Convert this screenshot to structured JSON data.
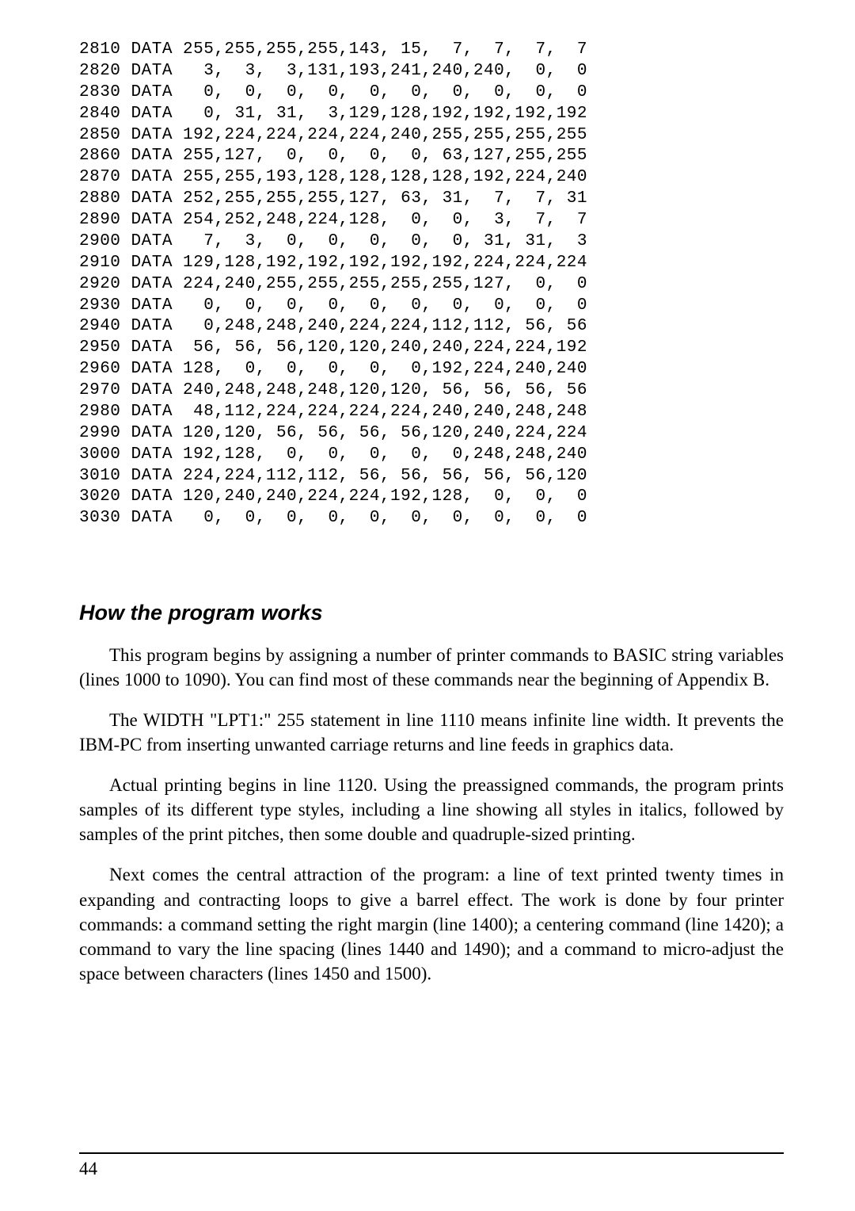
{
  "code": {
    "lines": [
      {
        "num": "2810",
        "kw": "DATA",
        "vals": "255,255,255,255,143, 15,  7,  7,  7,  7"
      },
      {
        "num": "2820",
        "kw": "DATA",
        "vals": "  3,  3,  3,131,193,241,240,240,  0,  0"
      },
      {
        "num": "2830",
        "kw": "DATA",
        "vals": "  0,  0,  0,  0,  0,  0,  0,  0,  0,  0"
      },
      {
        "num": "2840",
        "kw": "DATA",
        "vals": "  0, 31, 31,  3,129,128,192,192,192,192"
      },
      {
        "num": "2850",
        "kw": "DATA",
        "vals": "192,224,224,224,224,240,255,255,255,255"
      },
      {
        "num": "2860",
        "kw": "DATA",
        "vals": "255,127,  0,  0,  0,  0, 63,127,255,255"
      },
      {
        "num": "2870",
        "kw": "DATA",
        "vals": "255,255,193,128,128,128,128,192,224,240"
      },
      {
        "num": "2880",
        "kw": "DATA",
        "vals": "252,255,255,255,127, 63, 31,  7,  7, 31"
      },
      {
        "num": "2890",
        "kw": "DATA",
        "vals": "254,252,248,224,128,  0,  0,  3,  7,  7"
      },
      {
        "num": "2900",
        "kw": "DATA",
        "vals": "  7,  3,  0,  0,  0,  0,  0, 31, 31,  3"
      },
      {
        "num": "2910",
        "kw": "DATA",
        "vals": "129,128,192,192,192,192,192,224,224,224"
      },
      {
        "num": "2920",
        "kw": "DATA",
        "vals": "224,240,255,255,255,255,255,127,  0,  0"
      },
      {
        "num": "2930",
        "kw": "DATA",
        "vals": "  0,  0,  0,  0,  0,  0,  0,  0,  0,  0"
      },
      {
        "num": "2940",
        "kw": "DATA",
        "vals": "  0,248,248,240,224,224,112,112, 56, 56"
      },
      {
        "num": "2950",
        "kw": "DATA",
        "vals": " 56, 56, 56,120,120,240,240,224,224,192"
      },
      {
        "num": "2960",
        "kw": "DATA",
        "vals": "128,  0,  0,  0,  0,  0,192,224,240,240"
      },
      {
        "num": "2970",
        "kw": "DATA",
        "vals": "240,248,248,248,120,120, 56, 56, 56, 56"
      },
      {
        "num": "2980",
        "kw": "DATA",
        "vals": " 48,112,224,224,224,224,240,240,248,248"
      },
      {
        "num": "2990",
        "kw": "DATA",
        "vals": "120,120, 56, 56, 56, 56,120,240,224,224"
      },
      {
        "num": "3000",
        "kw": "DATA",
        "vals": "192,128,  0,  0,  0,  0,  0,248,248,240"
      },
      {
        "num": "3010",
        "kw": "DATA",
        "vals": "224,224,112,112, 56, 56, 56, 56, 56,120"
      },
      {
        "num": "3020",
        "kw": "DATA",
        "vals": "120,240,240,224,224,192,128,  0,  0,  0"
      },
      {
        "num": "3030",
        "kw": "DATA",
        "vals": "  0,  0,  0,  0,  0,  0,  0,  0,  0,  0"
      }
    ]
  },
  "heading": "How the program works",
  "paragraphs": [
    "This program begins by assigning a number of printer commands to BASIC string variables (lines 1000 to 1090). You can find most of these commands near the beginning of Appendix B.",
    "The WIDTH \"LPT1:\" 255 statement in line 1110 means infinite line width. It prevents the IBM-PC from inserting unwanted carriage returns and line feeds in graphics data.",
    "Actual printing begins in line 1120. Using the preassigned commands, the program prints samples of its different type styles, including a line showing all styles in italics, followed by samples of the print pitches, then some double and quadruple-sized printing.",
    "Next comes the central attraction of the program: a line of text printed twenty times in expanding and contracting loops to give a barrel effect. The work is done by four printer commands: a command setting the right margin (line 1400); a centering command (line 1420); a command to vary the line spacing (lines 1440 and 1490); and a command to micro-adjust the space between characters (lines 1450 and 1500)."
  ],
  "page_number": "44"
}
